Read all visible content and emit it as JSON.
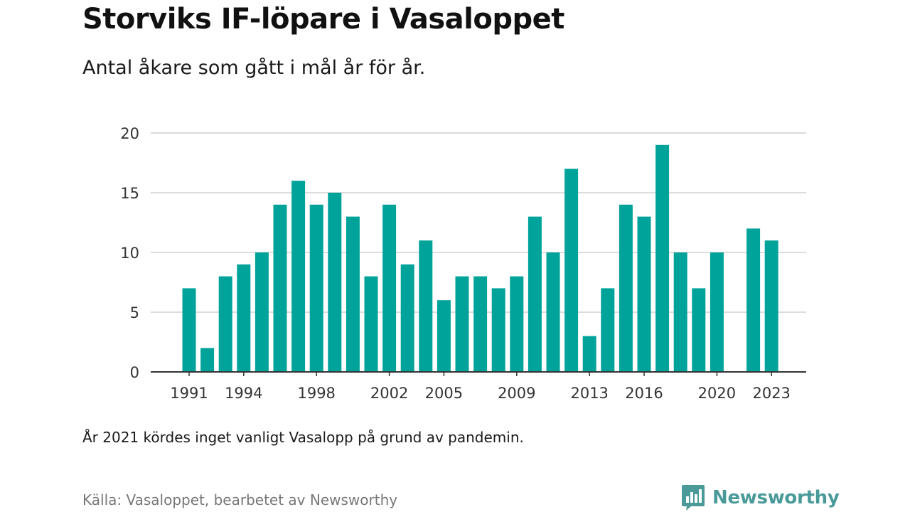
{
  "title": "Storviks IF-löpare i Vasaloppet",
  "subtitle": "Antal åkare som gått i mål år för år.",
  "note": "År 2021 kördes inget vanligt Vasalopp på grund av pandemin.",
  "source": "Källa: Vasaloppet, bearbetet av Newsworthy",
  "brand": {
    "name": "Newsworthy",
    "icon": "newsworthy-logo-icon",
    "color": "#4a9a9a"
  },
  "colors": {
    "bar": "#00a39a",
    "grid": "#dcdcdc",
    "axis": "#333333"
  },
  "chart_data": {
    "type": "bar",
    "categories": [
      1991,
      1992,
      1993,
      1994,
      1995,
      1996,
      1997,
      1998,
      1999,
      2000,
      2001,
      2002,
      2003,
      2004,
      2005,
      2006,
      2007,
      2008,
      2009,
      2010,
      2011,
      2012,
      2013,
      2014,
      2015,
      2016,
      2017,
      2018,
      2019,
      2020,
      2021,
      2022,
      2023
    ],
    "values": [
      7,
      2,
      8,
      9,
      10,
      14,
      16,
      14,
      15,
      13,
      8,
      14,
      9,
      11,
      6,
      8,
      8,
      7,
      8,
      13,
      10,
      17,
      3,
      7,
      14,
      13,
      19,
      10,
      7,
      10,
      null,
      12,
      11
    ],
    "x_tick_labels": [
      "1991",
      "1994",
      "1998",
      "2002",
      "2005",
      "2009",
      "2013",
      "2016",
      "2020",
      "2023"
    ],
    "y_ticks": [
      "0",
      "5",
      "10",
      "15",
      "20"
    ],
    "ylim": [
      0,
      20
    ],
    "xlabel": "",
    "ylabel": "",
    "grid": true,
    "legend": "none"
  }
}
